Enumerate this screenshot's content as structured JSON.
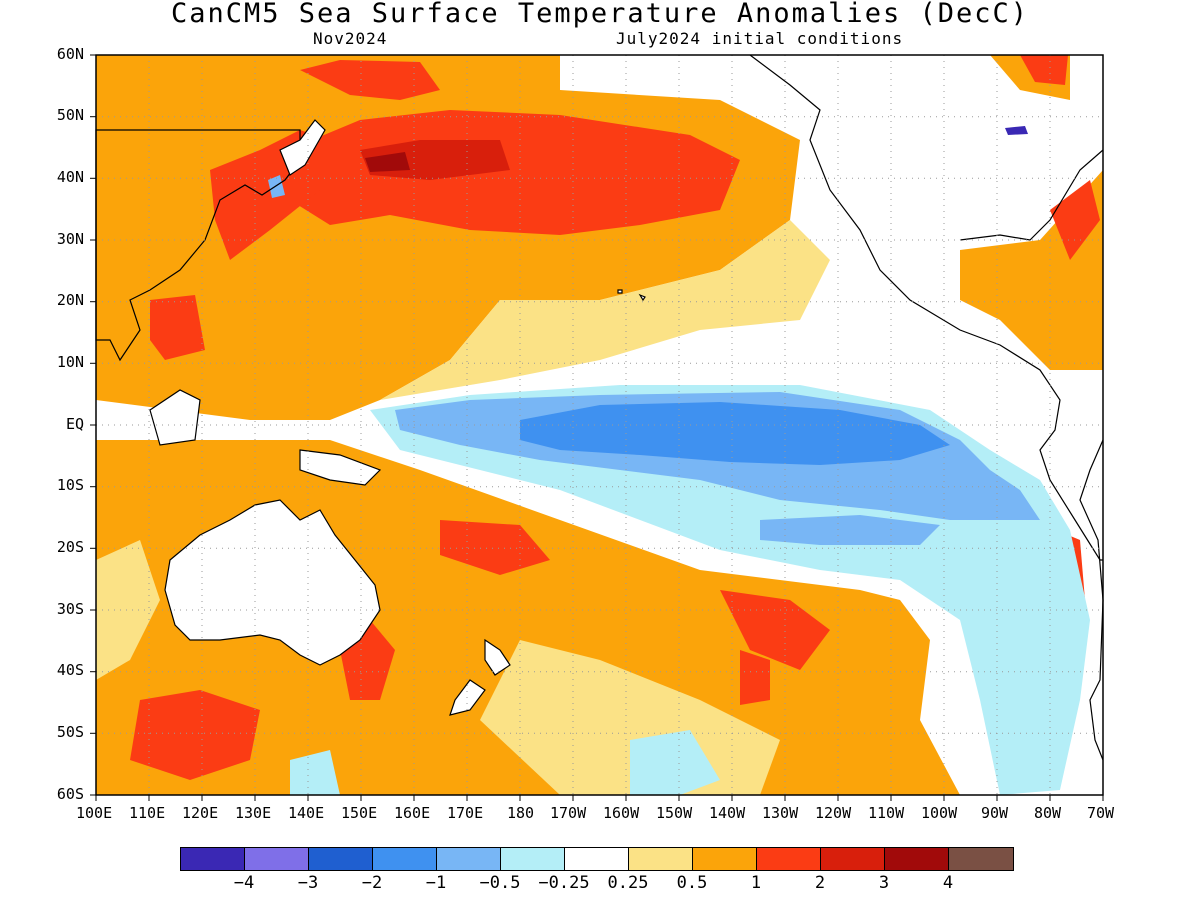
{
  "title": "CanCM5 Sea Surface Temperature Anomalies (DecC)",
  "subtitle_left": "Nov2024",
  "subtitle_right": "July2024 initial conditions",
  "lat_labels": [
    "60N",
    "50N",
    "40N",
    "30N",
    "20N",
    "10N",
    "EQ",
    "10S",
    "20S",
    "30S",
    "40S",
    "50S",
    "60S"
  ],
  "lon_labels": [
    "100E",
    "110E",
    "120E",
    "130E",
    "140E",
    "150E",
    "160E",
    "170E",
    "180",
    "170W",
    "160W",
    "150W",
    "140W",
    "130W",
    "120W",
    "110W",
    "100W",
    "90W",
    "80W",
    "70W"
  ],
  "colorbar": {
    "colors": [
      "#3a28b4",
      "#7f6fe8",
      "#1f5fd0",
      "#3f91f0",
      "#78b6f5",
      "#b4eef7",
      "#ffffff",
      "#fbe286",
      "#fba40a",
      "#fb3c14",
      "#d81f0c",
      "#a10a0a",
      "#7a5044"
    ],
    "labels": [
      "−4",
      "−3",
      "−2",
      "−1",
      "−0.5",
      "−0.25",
      "0.25",
      "0.5",
      "1",
      "2",
      "3",
      "4"
    ]
  }
}
